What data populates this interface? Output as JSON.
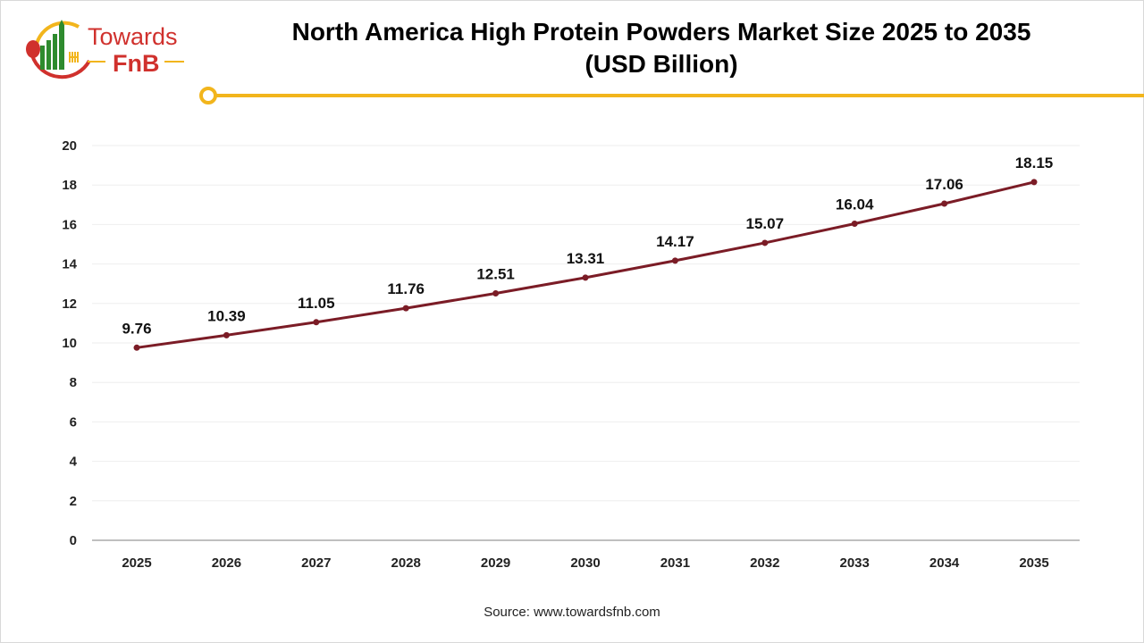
{
  "logo": {
    "line1": "Towards",
    "line2": "FnB"
  },
  "colors": {
    "line": "#7b1c26",
    "accent": "#f2b51c",
    "logo_red": "#d0312d",
    "logo_green": "#2e8b2e",
    "grid": "#eeeeee",
    "axis": "#bfbfbf"
  },
  "source": "Source: www.towardsfnb.com",
  "chart_data": {
    "type": "line",
    "title_line1": "North America High Protein Powders Market Size 2025 to 2035",
    "title_line2": "(USD Billion)",
    "categories": [
      "2025",
      "2026",
      "2027",
      "2028",
      "2029",
      "2030",
      "2031",
      "2032",
      "2033",
      "2034",
      "2035"
    ],
    "values": [
      9.76,
      10.39,
      11.05,
      11.76,
      12.51,
      13.31,
      14.17,
      15.07,
      16.04,
      17.06,
      18.15
    ],
    "data_labels": [
      "9.76",
      "10.39",
      "11.05",
      "11.76",
      "12.51",
      "13.31",
      "14.17",
      "15.07",
      "16.04",
      "17.06",
      "18.15"
    ],
    "yticks": [
      "0",
      "2",
      "4",
      "6",
      "8",
      "10",
      "12",
      "14",
      "16",
      "18",
      "20"
    ],
    "ylim": [
      0,
      20
    ],
    "grid": true,
    "legend": "none"
  }
}
